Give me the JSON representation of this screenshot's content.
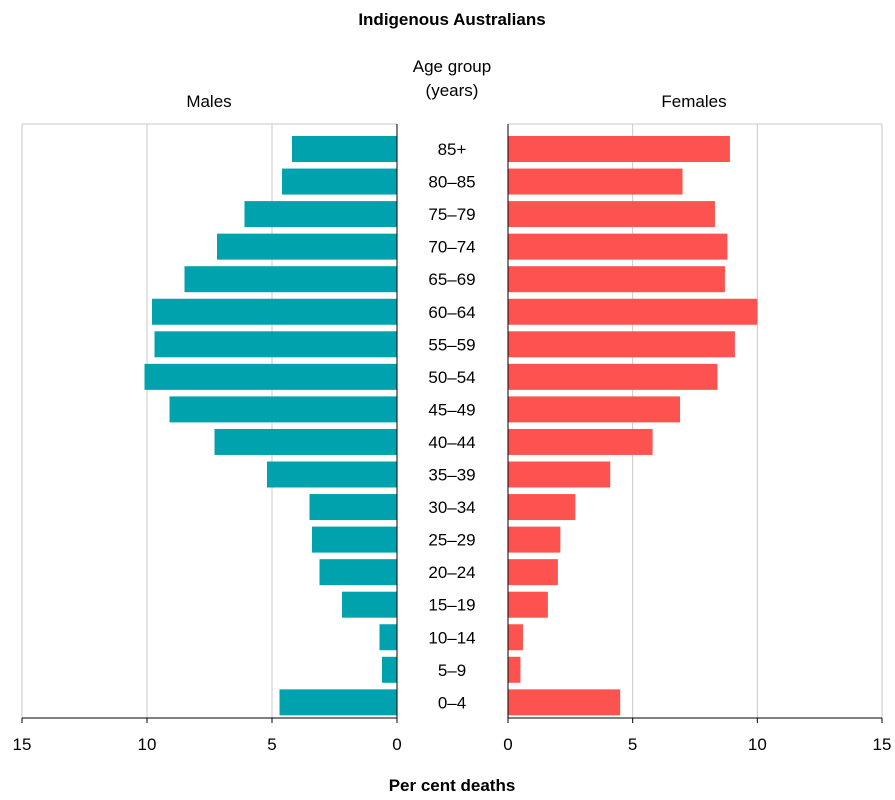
{
  "chart_data": {
    "type": "bar",
    "title": "Indigenous Australians",
    "center_label_line1": "Age group",
    "center_label_line2": "(years)",
    "xlabel": "Per cent deaths",
    "xlim": [
      0,
      15
    ],
    "ticks": [
      15,
      10,
      5,
      0
    ],
    "ticks_right": [
      0,
      5,
      10,
      15
    ],
    "grid": true,
    "categories": [
      "85+",
      "80–85",
      "75–79",
      "70–74",
      "65–69",
      "60–64",
      "55–59",
      "50–54",
      "45–49",
      "40–44",
      "35–39",
      "30–34",
      "25–29",
      "20–24",
      "15–19",
      "10–14",
      "5–9",
      "0–4"
    ],
    "series": [
      {
        "name": "Males",
        "color": "#00a3ad",
        "values": [
          4.2,
          4.6,
          6.1,
          7.2,
          8.5,
          9.8,
          9.7,
          10.1,
          9.1,
          7.3,
          5.2,
          3.5,
          3.4,
          3.1,
          2.2,
          0.7,
          0.6,
          4.7
        ]
      },
      {
        "name": "Females",
        "color": "#fc5350",
        "values": [
          8.9,
          7.0,
          8.3,
          8.8,
          8.7,
          10.0,
          9.1,
          8.4,
          6.9,
          5.8,
          4.1,
          2.7,
          2.1,
          2.0,
          1.6,
          0.6,
          0.5,
          4.5
        ]
      }
    ]
  }
}
